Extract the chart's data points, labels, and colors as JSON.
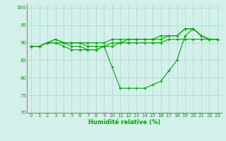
{
  "title": "",
  "xlabel": "Humidité relative (%)",
  "ylabel": "",
  "bg_color": "#d4f0eb",
  "grid_color": "#a8d8cc",
  "line_color": "#00aa00",
  "axis_color": "#888888",
  "xlim": [
    -0.5,
    23.5
  ],
  "ylim": [
    70,
    101
  ],
  "yticks": [
    70,
    75,
    80,
    85,
    90,
    95,
    100
  ],
  "xticks": [
    0,
    1,
    2,
    3,
    4,
    5,
    6,
    7,
    8,
    9,
    10,
    11,
    12,
    13,
    14,
    15,
    16,
    17,
    18,
    19,
    20,
    21,
    22,
    23
  ],
  "line1": [
    89,
    89,
    90,
    90,
    90,
    90,
    90,
    89,
    89,
    89,
    90,
    90,
    90,
    90,
    90,
    90,
    90,
    91,
    91,
    91,
    91,
    91,
    91,
    91
  ],
  "line2": [
    89,
    89,
    90,
    91,
    90,
    90,
    90,
    90,
    90,
    90,
    91,
    91,
    91,
    91,
    91,
    91,
    92,
    92,
    92,
    94,
    94,
    92,
    91,
    91
  ],
  "line3": [
    89,
    89,
    90,
    91,
    90,
    89,
    89,
    88,
    88,
    89,
    89,
    90,
    91,
    91,
    91,
    91,
    91,
    92,
    92,
    94,
    94,
    92,
    91,
    91
  ],
  "line4": [
    89,
    89,
    90,
    90,
    89,
    88,
    88,
    88,
    88,
    89,
    83,
    77,
    77,
    77,
    77,
    78,
    79,
    82,
    85,
    92,
    94,
    92,
    91,
    91
  ],
  "marker_size": 2.5,
  "line_width": 0.8,
  "tick_fontsize": 5.0,
  "xlabel_fontsize": 6.0
}
